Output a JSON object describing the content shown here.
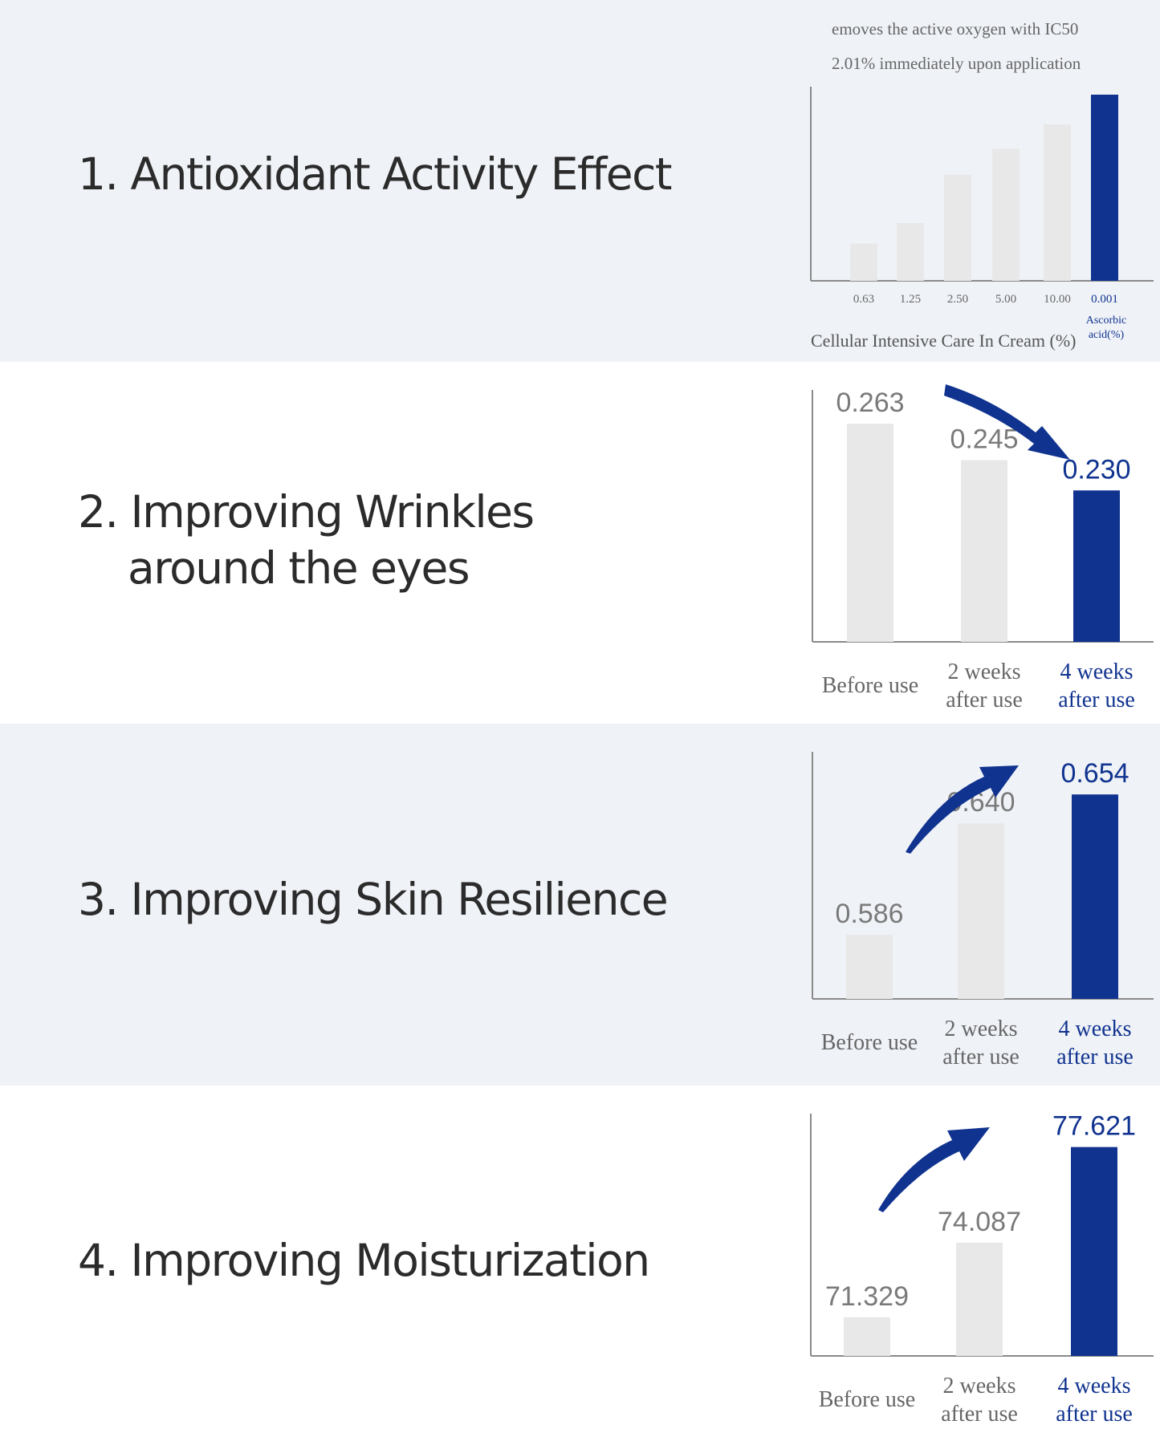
{
  "colors": {
    "panel_light": "#eff2f7",
    "panel_white": "#ffffff",
    "bar_grey": "#e8e8e8",
    "accent_navy": "#10338f",
    "axis": "#8a8a8a",
    "label_grey": "#777777"
  },
  "sections": [
    {
      "heading_lines": [
        "1. Antioxidant Activity Effect"
      ],
      "annotation_lines": [
        "emoves the active oxygen with IC50",
        "2.01% immediately upon application"
      ]
    },
    {
      "heading_lines": [
        "2. Improving Wrinkles",
        "around the eyes"
      ],
      "trend_icon": "arrow-down-right-icon"
    },
    {
      "heading_lines": [
        "3. Improving Skin Resilience"
      ],
      "trend_icon": "arrow-up-right-icon"
    },
    {
      "heading_lines": [
        "4. Improving Moisturization"
      ],
      "trend_icon": "arrow-up-right-icon"
    }
  ],
  "chart_data": [
    {
      "type": "bar",
      "categories": [
        "0.63",
        "1.25",
        "2.50",
        "5.00",
        "10.00",
        "0.001"
      ],
      "values": [
        20,
        31,
        57,
        71,
        84,
        100
      ],
      "highlight_index": 5,
      "category_sublabel": [
        "Ascorbic",
        "acid(%)"
      ],
      "xlabel": "Cellular Intensive Care In Cream (%)",
      "ylim": [
        0,
        100
      ]
    },
    {
      "type": "bar",
      "categories": [
        [
          "Before use"
        ],
        [
          "2 weeks",
          "after use"
        ],
        [
          "4 weeks",
          "after use"
        ]
      ],
      "values": [
        0.263,
        0.245,
        0.23
      ],
      "value_labels": [
        "0.263",
        "0.245",
        "0.230"
      ],
      "highlight_index": 2,
      "ylim": [
        0.155,
        0.275
      ]
    },
    {
      "type": "bar",
      "categories": [
        [
          "Before use"
        ],
        [
          "2 weeks",
          "after use"
        ],
        [
          "4 weeks",
          "after use"
        ]
      ],
      "values": [
        0.586,
        0.64,
        0.654
      ],
      "value_labels": [
        "0.586",
        "0.640",
        "0.654"
      ],
      "highlight_index": 2,
      "ylim": [
        0.555,
        0.67
      ]
    },
    {
      "type": "bar",
      "categories": [
        [
          "Before use"
        ],
        [
          "2 weeks",
          "after use"
        ],
        [
          "4 weeks",
          "after use"
        ]
      ],
      "values": [
        71.329,
        74.087,
        77.621
      ],
      "value_labels": [
        "71.329",
        "74.087",
        "77.621"
      ],
      "highlight_index": 2,
      "ylim": [
        69.9,
        78.5
      ]
    }
  ]
}
